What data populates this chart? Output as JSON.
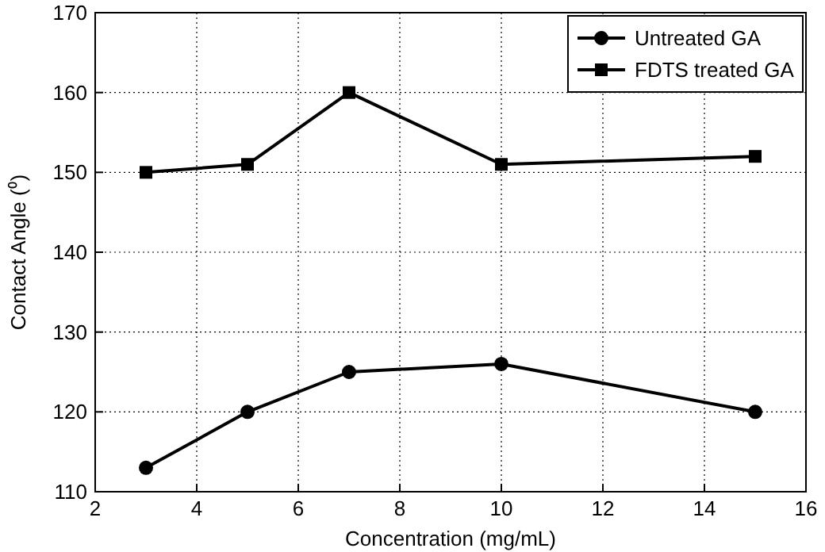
{
  "chart_data": {
    "type": "line",
    "xlabel": "Concentration (mg/mL)",
    "ylabel": "Contact Angle (⁰)",
    "x": [
      3,
      5,
      7,
      10,
      15
    ],
    "series": [
      {
        "name": "Untreated GA",
        "color": "#000000",
        "marker": "circle",
        "values": [
          113,
          120,
          125,
          126,
          120
        ]
      },
      {
        "name": "FDTS treated GA",
        "color": "#000000",
        "marker": "square",
        "values": [
          150,
          151,
          160,
          151,
          152
        ]
      }
    ],
    "xlim": [
      2,
      16
    ],
    "xticks": [
      2,
      4,
      6,
      8,
      10,
      12,
      14,
      16
    ],
    "ylim": [
      110,
      170
    ],
    "yticks": [
      110,
      120,
      130,
      140,
      150,
      160,
      170
    ],
    "grid": true,
    "legend": "top right",
    "line_style": "solid"
  }
}
